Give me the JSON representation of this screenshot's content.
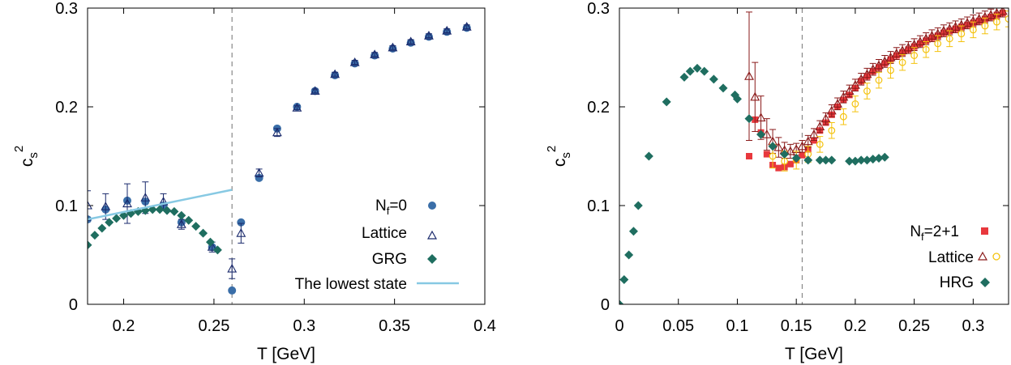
{
  "chart_data": [
    {
      "type": "scatter",
      "title": "",
      "xlabel": "T [GeV]",
      "ylabel": "c",
      "ylabel_sub": "s",
      "ylabel_sup": "2",
      "xlim": [
        0.18,
        0.4
      ],
      "ylim": [
        0,
        0.3
      ],
      "xticks": [
        0.2,
        0.25,
        0.3,
        0.35,
        0.4
      ],
      "xtick_labels": [
        "0.2",
        "0.25",
        "0.3",
        "0.35",
        "0.4"
      ],
      "yticks": [
        0,
        0.1,
        0.2,
        0.3
      ],
      "ytick_labels": [
        "0",
        "0.1",
        "0.2",
        "0.3"
      ],
      "grid": false,
      "legend_position": "bottom-right",
      "vline_x": 0.26,
      "legend": {
        "header_main": "N",
        "header_sub": "f",
        "header_rest": "=0",
        "entries": [
          "Lattice",
          "GRG",
          "The lowest state"
        ]
      },
      "series": [
        {
          "name": "Lattice",
          "marker": "circle",
          "color": "#3a6ea8",
          "x": [
            0.18,
            0.19,
            0.202,
            0.212,
            0.222,
            0.232,
            0.249,
            0.26,
            0.265,
            0.275,
            0.285,
            0.296,
            0.306,
            0.317,
            0.328,
            0.339,
            0.349,
            0.359,
            0.369,
            0.379,
            0.39
          ],
          "y": [
            0.086,
            0.096,
            0.105,
            0.104,
            0.1,
            0.083,
            0.058,
            0.014,
            0.083,
            0.128,
            0.178,
            0.2,
            0.216,
            0.232,
            0.244,
            0.252,
            0.259,
            0.265,
            0.271,
            0.276,
            0.28
          ]
        },
        {
          "name": "Lattice",
          "marker": "triangle",
          "color": "#1a2a6c",
          "x": [
            0.18,
            0.19,
            0.202,
            0.212,
            0.222,
            0.232,
            0.249,
            0.26,
            0.265,
            0.275,
            0.285,
            0.296,
            0.306,
            0.317,
            0.328,
            0.339,
            0.349,
            0.359,
            0.369,
            0.379,
            0.39
          ],
          "y": [
            0.1,
            0.099,
            0.102,
            0.108,
            0.104,
            0.081,
            0.058,
            0.036,
            0.072,
            0.133,
            0.174,
            0.199,
            0.216,
            0.233,
            0.245,
            0.253,
            0.26,
            0.266,
            0.272,
            0.277,
            0.281
          ],
          "err": [
            0.015,
            0.013,
            0.02,
            0.016,
            0.008,
            0.005,
            0.005,
            0.01,
            0.01,
            0.004,
            0.004,
            0.002,
            0.002,
            0.002,
            0.002,
            0.002,
            0.002,
            0.002,
            0.002,
            0.002,
            0.002
          ]
        },
        {
          "name": "GRG",
          "marker": "diamond",
          "color": "#1f6e60",
          "x": [
            0.18,
            0.184,
            0.188,
            0.192,
            0.196,
            0.2,
            0.204,
            0.208,
            0.212,
            0.216,
            0.22,
            0.224,
            0.228,
            0.232,
            0.236,
            0.24,
            0.244,
            0.248,
            0.252
          ],
          "y": [
            0.06,
            0.07,
            0.077,
            0.083,
            0.087,
            0.09,
            0.092,
            0.094,
            0.095,
            0.096,
            0.096,
            0.095,
            0.094,
            0.09,
            0.085,
            0.079,
            0.072,
            0.063,
            0.055
          ]
        },
        {
          "name": "The lowest state",
          "marker": "line",
          "color": "#87c9e3",
          "x": [
            0.18,
            0.26
          ],
          "y": [
            0.086,
            0.116
          ]
        }
      ]
    },
    {
      "type": "scatter",
      "title": "",
      "xlabel": "T [GeV]",
      "ylabel": "c",
      "ylabel_sub": "s",
      "ylabel_sup": "2",
      "xlim": [
        0,
        0.33
      ],
      "ylim": [
        0,
        0.3
      ],
      "xticks": [
        0,
        0.05,
        0.1,
        0.15,
        0.2,
        0.25,
        0.3
      ],
      "xtick_labels": [
        "0",
        "0.05",
        "0.1",
        "0.15",
        "0.2",
        "0.25",
        "0.3"
      ],
      "yticks": [
        0,
        0.1,
        0.2,
        0.3
      ],
      "ytick_labels": [
        "0",
        "0.1",
        "0.2",
        "0.3"
      ],
      "grid": false,
      "legend_position": "bottom-right",
      "vline_x": 0.155,
      "legend": {
        "header_main": "N",
        "header_sub": "f",
        "header_rest": "=2+1",
        "entries": [
          "Lattice",
          "HRG"
        ]
      },
      "series": [
        {
          "name": "Lattice",
          "marker": "square",
          "color": "#e8383d",
          "x": [
            0.11,
            0.115,
            0.12,
            0.125,
            0.13,
            0.135,
            0.14,
            0.145,
            0.15,
            0.155,
            0.16,
            0.165,
            0.17,
            0.175,
            0.18,
            0.185,
            0.19,
            0.195,
            0.2,
            0.205,
            0.21,
            0.215,
            0.22,
            0.225,
            0.23,
            0.235,
            0.24,
            0.245,
            0.25,
            0.255,
            0.26,
            0.265,
            0.27,
            0.275,
            0.28,
            0.285,
            0.29,
            0.295,
            0.3,
            0.305,
            0.31,
            0.315,
            0.32,
            0.325
          ],
          "y": [
            0.15,
            0.187,
            0.174,
            0.152,
            0.141,
            0.138,
            0.139,
            0.142,
            0.146,
            0.151,
            0.157,
            0.166,
            0.176,
            0.184,
            0.192,
            0.2,
            0.207,
            0.212,
            0.219,
            0.226,
            0.231,
            0.236,
            0.24,
            0.244,
            0.248,
            0.252,
            0.255,
            0.258,
            0.261,
            0.264,
            0.267,
            0.27,
            0.272,
            0.275,
            0.277,
            0.279,
            0.281,
            0.283,
            0.285,
            0.287,
            0.289,
            0.291,
            0.293,
            0.295
          ]
        },
        {
          "name": "Lattice",
          "marker": "triangle",
          "color": "#8a1a1a",
          "x": [
            0.11,
            0.115,
            0.12,
            0.125,
            0.13,
            0.135,
            0.14,
            0.145,
            0.15,
            0.155,
            0.16,
            0.165,
            0.17,
            0.175,
            0.18,
            0.185,
            0.19,
            0.195,
            0.2,
            0.205,
            0.21,
            0.215,
            0.22,
            0.225,
            0.23,
            0.235,
            0.24,
            0.245,
            0.25,
            0.255,
            0.26,
            0.265,
            0.27,
            0.275,
            0.28,
            0.285,
            0.29,
            0.295,
            0.3,
            0.305,
            0.31,
            0.315,
            0.32,
            0.325
          ],
          "y": [
            0.231,
            0.21,
            0.189,
            0.172,
            0.165,
            0.159,
            0.156,
            0.155,
            0.157,
            0.16,
            0.165,
            0.172,
            0.18,
            0.188,
            0.196,
            0.203,
            0.21,
            0.216,
            0.222,
            0.228,
            0.233,
            0.238,
            0.242,
            0.246,
            0.25,
            0.254,
            0.257,
            0.26,
            0.263,
            0.266,
            0.269,
            0.272,
            0.274,
            0.277,
            0.279,
            0.281,
            0.283,
            0.285,
            0.287,
            0.289,
            0.291,
            0.293,
            0.295,
            0.297
          ],
          "err": [
            0.065,
            0.035,
            0.022,
            0.016,
            0.012,
            0.01,
            0.008,
            0.007,
            0.006,
            0.006,
            0.006,
            0.006,
            0.006,
            0.006,
            0.006,
            0.006,
            0.006,
            0.006,
            0.006,
            0.006,
            0.006,
            0.006,
            0.006,
            0.006,
            0.006,
            0.006,
            0.006,
            0.006,
            0.006,
            0.006,
            0.006,
            0.006,
            0.006,
            0.006,
            0.006,
            0.006,
            0.006,
            0.006,
            0.006,
            0.006,
            0.006,
            0.006,
            0.006,
            0.006
          ]
        },
        {
          "name": "Lattice",
          "marker": "open-circle",
          "color": "#f4c20d",
          "x": [
            0.13,
            0.14,
            0.15,
            0.16,
            0.17,
            0.18,
            0.19,
            0.2,
            0.21,
            0.22,
            0.23,
            0.24,
            0.25,
            0.26,
            0.27,
            0.28,
            0.29,
            0.3,
            0.31,
            0.32,
            0.33
          ],
          "y": [
            0.15,
            0.145,
            0.146,
            0.152,
            0.162,
            0.176,
            0.19,
            0.203,
            0.216,
            0.227,
            0.237,
            0.245,
            0.252,
            0.258,
            0.264,
            0.269,
            0.274,
            0.278,
            0.282,
            0.286,
            0.289
          ],
          "err": [
            0.012,
            0.01,
            0.009,
            0.008,
            0.008,
            0.008,
            0.008,
            0.008,
            0.008,
            0.008,
            0.008,
            0.008,
            0.008,
            0.008,
            0.008,
            0.008,
            0.008,
            0.008,
            0.008,
            0.008,
            0.008
          ]
        },
        {
          "name": "HRG",
          "marker": "diamond",
          "color": "#1f6e60",
          "x": [
            0.0,
            0.004,
            0.008,
            0.012,
            0.016,
            0.025,
            0.04,
            0.055,
            0.06,
            0.066,
            0.072,
            0.08,
            0.088,
            0.098,
            0.1,
            0.11,
            0.12,
            0.13,
            0.14,
            0.15,
            0.16,
            0.17,
            0.175,
            0.18,
            0.195,
            0.2,
            0.205,
            0.21,
            0.215,
            0.22,
            0.225
          ],
          "y": [
            0.0,
            0.025,
            0.05,
            0.074,
            0.1,
            0.15,
            0.205,
            0.23,
            0.236,
            0.239,
            0.236,
            0.228,
            0.219,
            0.212,
            0.208,
            0.188,
            0.172,
            0.16,
            0.152,
            0.148,
            0.146,
            0.146,
            0.146,
            0.146,
            0.145,
            0.145,
            0.146,
            0.146,
            0.147,
            0.148,
            0.149
          ]
        }
      ]
    }
  ]
}
